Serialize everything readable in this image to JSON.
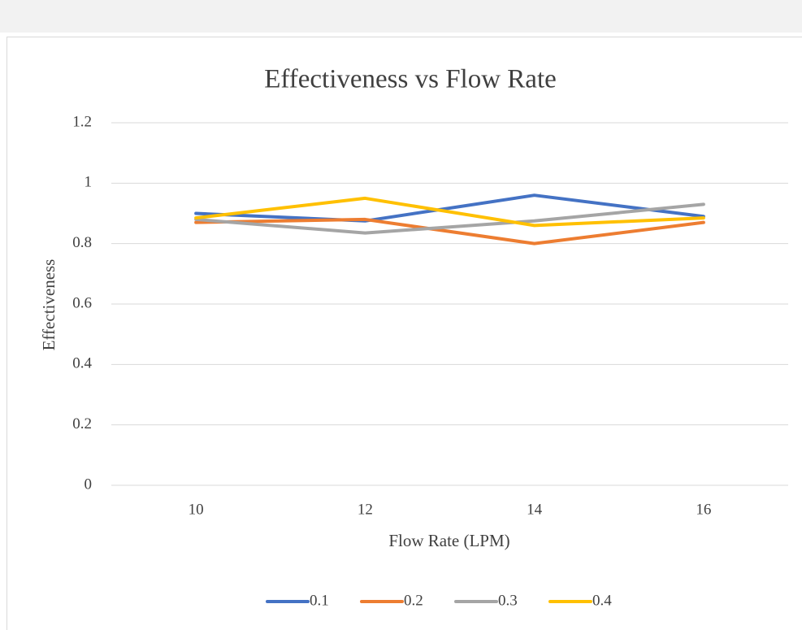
{
  "chart_data": {
    "type": "line",
    "title": "Effectiveness  vs Flow Rate",
    "x_label": "Flow Rate (LPM)",
    "y_label": "Effectiveness",
    "categories": [
      "10",
      "12",
      "14",
      "16"
    ],
    "series": [
      {
        "name": "0.1",
        "color": "#4472c4",
        "values": [
          0.9,
          0.875,
          0.96,
          0.89
        ]
      },
      {
        "name": "0.2",
        "color": "#ed7d31",
        "values": [
          0.87,
          0.88,
          0.8,
          0.87
        ]
      },
      {
        "name": "0.3",
        "color": "#a5a5a5",
        "values": [
          0.88,
          0.835,
          0.875,
          0.93
        ]
      },
      {
        "name": "0.4",
        "color": "#ffc000",
        "values": [
          0.885,
          0.95,
          0.86,
          0.885
        ]
      }
    ],
    "ylim": [
      0,
      1.2
    ],
    "yticks": [
      0,
      0.2,
      0.4,
      0.6,
      0.8,
      1,
      1.2
    ],
    "grid": true,
    "legend": "bottom"
  }
}
